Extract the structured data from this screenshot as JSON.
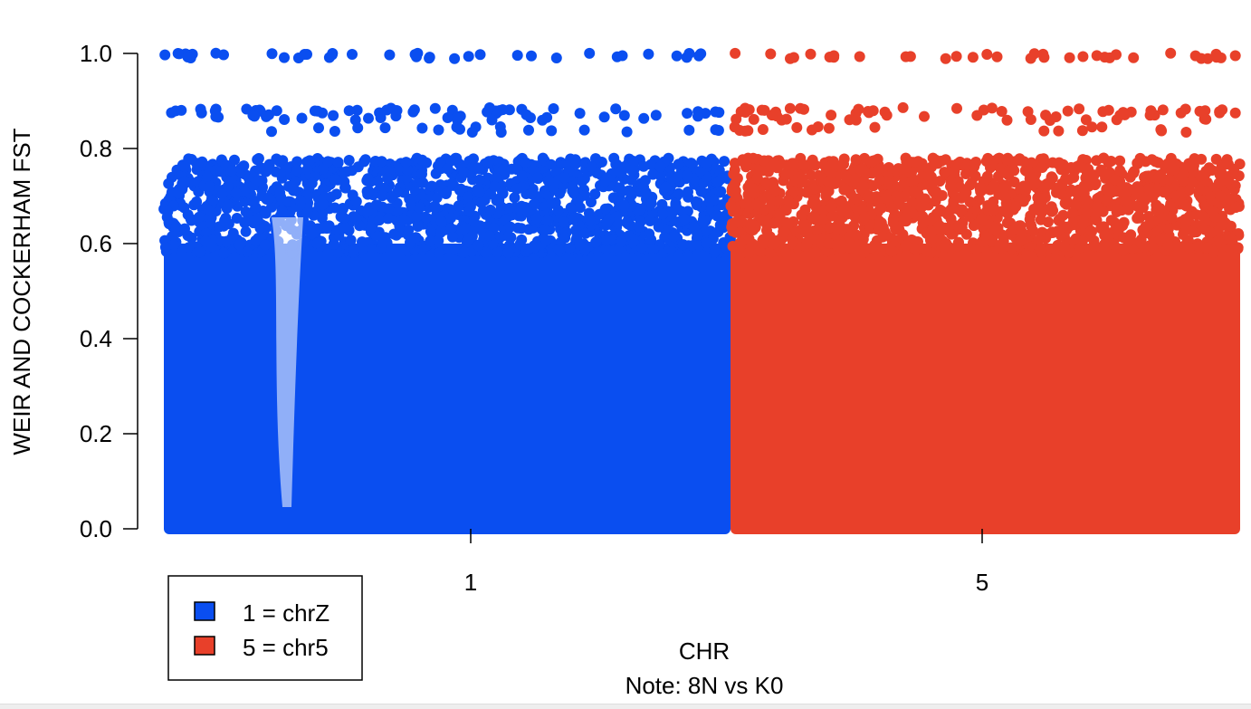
{
  "chart_data": {
    "type": "scatter",
    "title": "",
    "xlabel": "CHR",
    "note": "Note: 8N vs K0",
    "ylabel": "WEIR AND COCKERHAM FST",
    "ylim": [
      0,
      1
    ],
    "y_ticks": [
      "0.0",
      "0.2",
      "0.4",
      "0.6",
      "0.8",
      "1.0"
    ],
    "x_ticks": [
      "1",
      "5"
    ],
    "grid": false,
    "legend_position": "bottom-left",
    "legend": [
      {
        "label": "1 = chrZ",
        "color": "#0a4ef0"
      },
      {
        "label": "5 = chr5",
        "color": "#e8402a"
      }
    ],
    "series": [
      {
        "chromosome": "1",
        "color": "#0a4ef0",
        "y_min": 0,
        "y_max": 1.0,
        "fst_bands": [
          0.0,
          0.2,
          0.4,
          0.6,
          0.67,
          0.78,
          0.83,
          0.88,
          1.0
        ]
      },
      {
        "chromosome": "5",
        "color": "#e8402a",
        "y_min": 0,
        "y_max": 1.0,
        "fst_bands": [
          0.0,
          0.2,
          0.4,
          0.6,
          0.67,
          0.78,
          0.83,
          0.88,
          1.0
        ]
      }
    ]
  }
}
